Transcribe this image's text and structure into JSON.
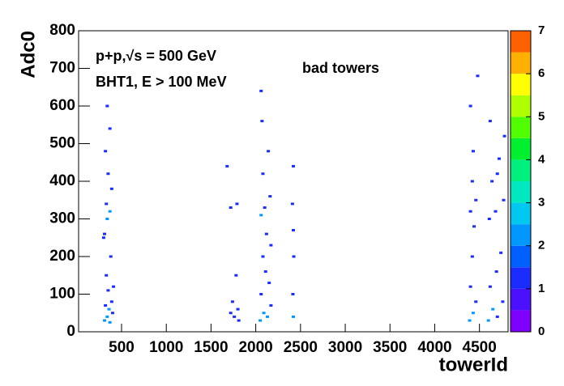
{
  "chart_data": {
    "type": "heatmap2d",
    "title": "bad towers",
    "annotations": [
      "p+p,√s = 500 GeV",
      "BHT1, E > 100 MeV"
    ],
    "x_label": "towerId",
    "y_label": "Adc0",
    "xlim": [
      20,
      4820
    ],
    "xticks": [
      500,
      1000,
      1500,
      2000,
      2500,
      3000,
      3500,
      4000,
      4500
    ],
    "ylim": [
      0,
      800
    ],
    "yticks": [
      0,
      100,
      200,
      300,
      400,
      500,
      600,
      700,
      800
    ],
    "zlim": [
      0,
      7
    ],
    "zticks": [
      0,
      1,
      2,
      3,
      4,
      5,
      6,
      7
    ],
    "palette": [
      "#8000ff",
      "#4b10ff",
      "#1a2cff",
      "#0060ff",
      "#0098ff",
      "#00c8f0",
      "#00e8c0",
      "#00f080",
      "#00f030",
      "#50ff00",
      "#b0ff00",
      "#ffff00",
      "#ffb000",
      "#ff6000"
    ],
    "x": [
      310,
      340,
      370,
      400,
      320,
      390,
      350,
      330,
      380,
      310,
      340,
      370,
      330,
      390,
      350,
      320,
      370,
      340,
      300,
      410,
      360,
      1720,
      1760,
      1800,
      1740,
      1810,
      1780,
      1720,
      1790,
      1680,
      2050,
      2090,
      2130,
      2170,
      2060,
      2150,
      2080,
      2120,
      2060,
      2100,
      2160,
      2080,
      2140,
      2070,
      2060,
      2110,
      2170,
      2420,
      2415,
      2425,
      2420,
      2410,
      2420,
      4390,
      4430,
      4460,
      4400,
      4420,
      4440,
      4400,
      4460,
      4420,
      4430,
      4400,
      4480,
      4600,
      4650,
      4700,
      4760,
      4620,
      4690,
      4740,
      4610,
      4680,
      4770,
      4640,
      4720,
      4780,
      4620,
      4700
    ],
    "y": [
      30,
      40,
      25,
      50,
      70,
      80,
      110,
      150,
      200,
      260,
      300,
      320,
      340,
      380,
      420,
      480,
      540,
      600,
      250,
      120,
      60,
      50,
      40,
      60,
      80,
      30,
      150,
      330,
      340,
      440,
      30,
      50,
      40,
      70,
      100,
      130,
      200,
      260,
      310,
      330,
      360,
      420,
      480,
      560,
      640,
      160,
      230,
      40,
      100,
      200,
      270,
      340,
      440,
      30,
      50,
      80,
      120,
      200,
      280,
      320,
      350,
      400,
      480,
      600,
      680,
      30,
      60,
      40,
      80,
      120,
      160,
      210,
      300,
      320,
      350,
      400,
      460,
      520,
      560,
      420
    ],
    "values": [
      2,
      2,
      2,
      1,
      1,
      1,
      1,
      1,
      1,
      1,
      2,
      2,
      1,
      1,
      1,
      1,
      1,
      1,
      1,
      1,
      2,
      1,
      1,
      1,
      1,
      1,
      1,
      1,
      1,
      1,
      2,
      2,
      2,
      1,
      1,
      1,
      1,
      1,
      2,
      1,
      1,
      1,
      1,
      1,
      1,
      1,
      1,
      2,
      1,
      1,
      1,
      1,
      1,
      2,
      2,
      1,
      1,
      1,
      1,
      1,
      1,
      1,
      1,
      1,
      1,
      2,
      2,
      1,
      1,
      1,
      1,
      1,
      1,
      1,
      1,
      1,
      1,
      1,
      1,
      1
    ]
  }
}
